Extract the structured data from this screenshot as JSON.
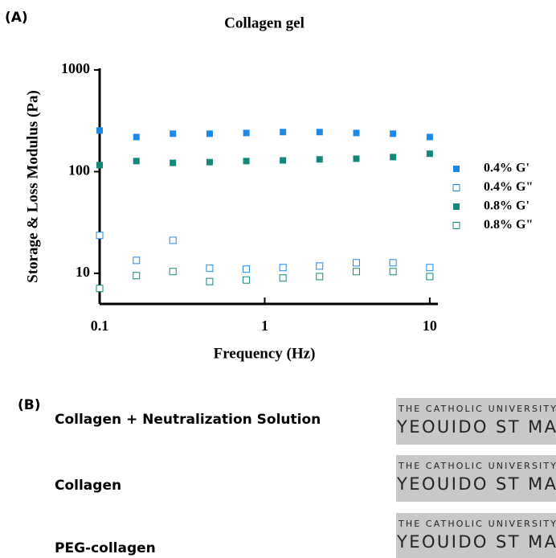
{
  "panel_a": "(A)",
  "panel_b": "(B)",
  "chart_data": {
    "type": "scatter",
    "title": "Collagen gel",
    "x_label": "Frequency (Hz)",
    "y_label": "Storage & Loss Modulus (Pa)",
    "x_scale": "log",
    "y_scale": "log",
    "xlim": [
      0.1,
      11.2
    ],
    "ylim": [
      5,
      1000
    ],
    "xticks": [
      0.1,
      1,
      10
    ],
    "yticks": [
      10,
      100,
      1000
    ],
    "legend": "right",
    "x": [
      0.1,
      0.167,
      0.278,
      0.464,
      0.774,
      1.29,
      2.15,
      3.59,
      5.99,
      10
    ],
    "series": [
      {
        "name": "0.4% G'",
        "color": "#1e88e5",
        "marker": "filled",
        "values": [
          254,
          219,
          236,
          236,
          240,
          245,
          245,
          240,
          236,
          219
        ]
      },
      {
        "name": "0.4% G\"",
        "color": "#1e88e5",
        "marker": "hollow",
        "values": [
          23.6,
          13.4,
          21.1,
          11.2,
          11.0,
          11.4,
          11.8,
          12.7,
          12.7,
          11.4
        ]
      },
      {
        "name": "0.8% G'",
        "color": "#13877a",
        "marker": "filled",
        "values": [
          116,
          127,
          122,
          124,
          127,
          129,
          132,
          134,
          139,
          150
        ]
      },
      {
        "name": "0.8% G\"",
        "color": "#13877a",
        "marker": "hollow",
        "values": [
          7.1,
          9.5,
          10.4,
          8.3,
          8.6,
          9.0,
          9.3,
          10.4,
          10.4,
          9.3
        ]
      }
    ]
  },
  "samples": [
    {
      "label": "Collagen +   Neutralization Solution",
      "photo_line1": "THE CATHOLIC UNIVERSITY",
      "photo_line2": "YEOUIDO ST MA"
    },
    {
      "label": "Collagen",
      "photo_line1": "THE CATHOLIC UNIVERSITY",
      "photo_line2": "YEOUIDO ST MA"
    },
    {
      "label": "PEG-collagen",
      "photo_line1": "THE CATHOLIC UNIVERSITY",
      "photo_line2": "YEOUIDO ST MA"
    }
  ]
}
